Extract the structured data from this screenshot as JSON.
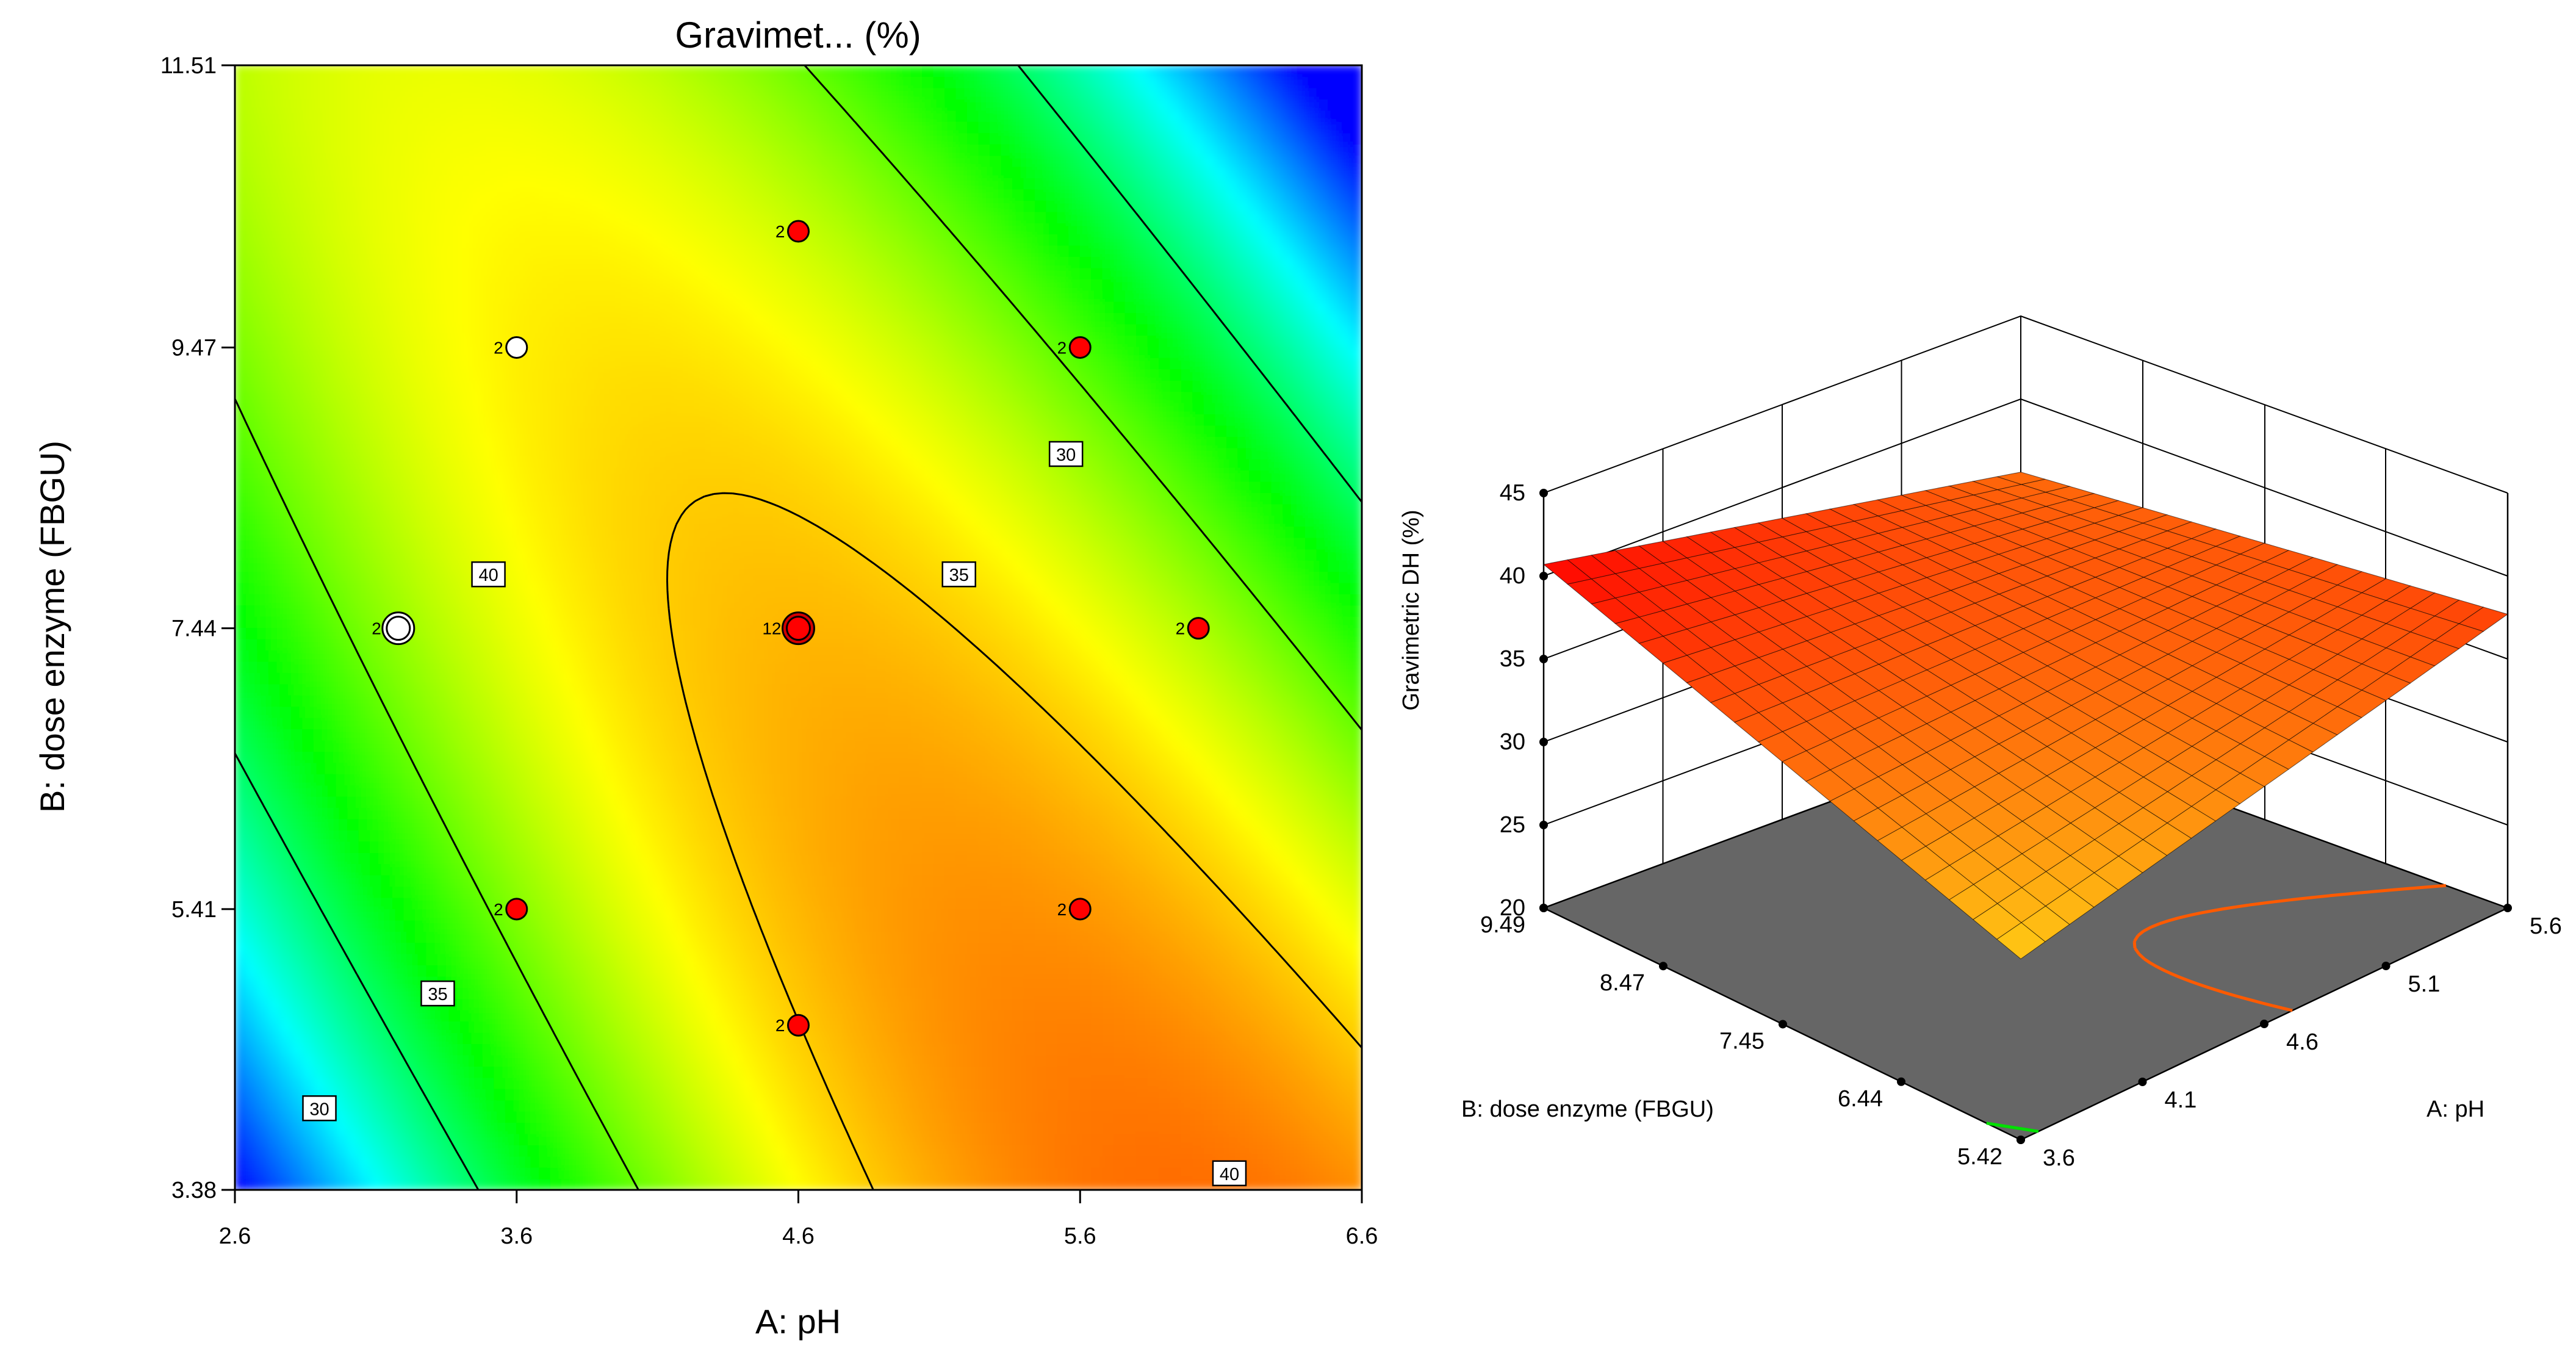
{
  "chart_data": [
    {
      "type": "heatmap",
      "title": "Gravimet... (%)",
      "xlabel": "A: pH",
      "ylabel": "B: dose enzyme (FBGU)",
      "xlim": [
        2.6,
        6.6
      ],
      "ylim": [
        3.38,
        11.51
      ],
      "x_ticks": [
        "2.6",
        "3.6",
        "4.6",
        "5.6",
        "6.6"
      ],
      "y_ticks": [
        "3.38",
        "5.41",
        "7.44",
        "9.47",
        "11.51"
      ],
      "color_scale": [
        "#0000ff",
        "#00ffff",
        "#00ff00",
        "#ffff00",
        "#ff0000"
      ],
      "z_range": [
        20,
        45
      ],
      "contour_levels": [
        30,
        35,
        40
      ],
      "contour_labels": [
        {
          "text": "30",
          "x": 5.55,
          "y": 8.7
        },
        {
          "text": "35",
          "x": 5.17,
          "y": 7.83
        },
        {
          "text": "40",
          "x": 3.5,
          "y": 7.83
        },
        {
          "text": "35",
          "x": 3.32,
          "y": 4.8
        },
        {
          "text": "30",
          "x": 2.9,
          "y": 3.97
        },
        {
          "text": "40",
          "x": 6.13,
          "y": 3.5
        }
      ],
      "design_points": [
        {
          "x": 3.6,
          "y": 9.47,
          "label": "2",
          "style": "white"
        },
        {
          "x": 4.6,
          "y": 10.31,
          "label": "2",
          "style": "red"
        },
        {
          "x": 5.6,
          "y": 9.47,
          "label": "2",
          "style": "red"
        },
        {
          "x": 3.18,
          "y": 7.44,
          "label": "2",
          "style": "white-large"
        },
        {
          "x": 4.6,
          "y": 7.44,
          "label": "12",
          "style": "red-large"
        },
        {
          "x": 6.02,
          "y": 7.44,
          "label": "2",
          "style": "red"
        },
        {
          "x": 3.6,
          "y": 5.41,
          "label": "2",
          "style": "red"
        },
        {
          "x": 5.6,
          "y": 5.41,
          "label": "2",
          "style": "red"
        },
        {
          "x": 4.6,
          "y": 4.57,
          "label": "2",
          "style": "red"
        }
      ]
    },
    {
      "type": "surface",
      "zlabel": "Gravimetric DH (%)",
      "xlabel": "A: pH",
      "ylabel": "B: dose enzyme (FBGU)",
      "z_ticks": [
        "20",
        "25",
        "30",
        "35",
        "40",
        "45"
      ],
      "z_range": [
        20,
        45
      ],
      "a_ticks": [
        "3.6",
        "4.1",
        "4.6",
        "5.1",
        "5.6"
      ],
      "a_range": [
        3.6,
        5.6
      ],
      "b_ticks": [
        "5.42",
        "6.44",
        "7.45",
        "8.47",
        "9.49"
      ],
      "b_range": [
        5.42,
        9.49
      ],
      "corner_values": {
        "a_min_b_min": 30.9,
        "a_min_b_max": 40.7,
        "a_max_b_min": 37.7,
        "a_max_b_max": 35.6
      },
      "floor_color": "#666666",
      "grid": true
    }
  ]
}
